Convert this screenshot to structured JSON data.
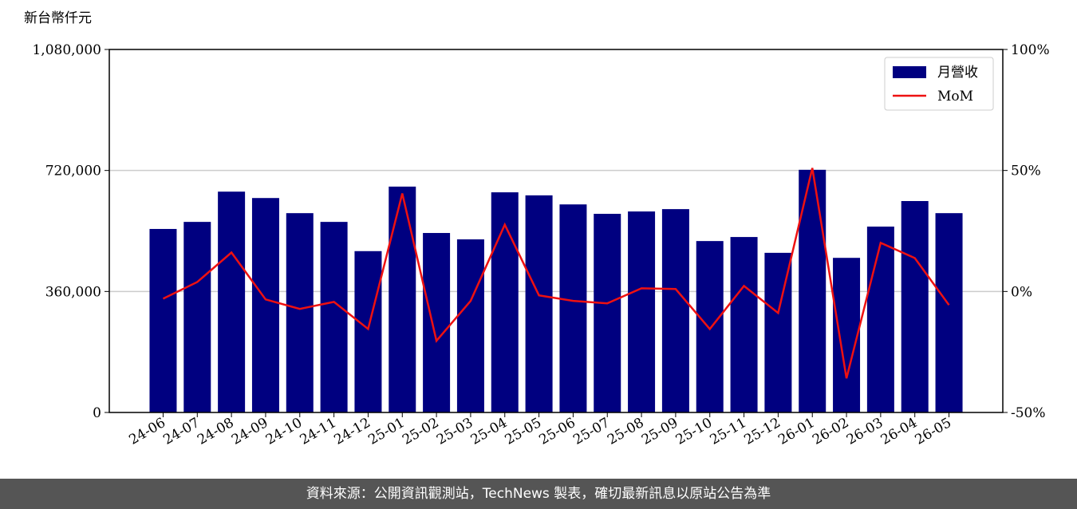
{
  "chart_data": {
    "type": "bar-line",
    "y_label": "新台幣仟元",
    "categories": [
      "24-06",
      "24-07",
      "24-08",
      "24-09",
      "24-10",
      "24-11",
      "24-12",
      "25-01",
      "25-02",
      "25-03",
      "25-04",
      "25-05",
      "25-06",
      "25-07",
      "25-08",
      "25-09",
      "25-10",
      "25-11",
      "25-12",
      "26-01",
      "26-02",
      "26-03",
      "26-04",
      "26-05"
    ],
    "series": [
      {
        "name": "月營收",
        "type": "bar",
        "color": "#000080",
        "axis": "y",
        "values": [
          546000,
          567000,
          657000,
          638000,
          593000,
          567000,
          480000,
          672000,
          534000,
          515000,
          655000,
          646000,
          619000,
          591000,
          598000,
          605000,
          510000,
          522000,
          475000,
          722000,
          460000,
          553000,
          629000,
          593000
        ]
      },
      {
        "name": "MoM",
        "type": "line",
        "color": "#ee1111",
        "axis": "y2",
        "values": [
          -3.0,
          3.9,
          16.1,
          -3.3,
          -7.2,
          -4.3,
          -15.5,
          40.5,
          -20.4,
          -3.9,
          27.6,
          -1.6,
          -3.9,
          -4.9,
          1.3,
          1.0,
          -15.5,
          2.3,
          -8.9,
          51.0,
          -35.9,
          20.1,
          13.8,
          -5.6
        ]
      }
    ],
    "ylim": [
      0,
      1080000
    ],
    "yticks": [
      0,
      {
        "value": 360000,
        "label": "360,000"
      },
      {
        "value": 720000,
        "label": "720,000"
      },
      {
        "value": 1080000,
        "label": "1,080,000"
      }
    ],
    "y2lim": [
      -50,
      100
    ],
    "y2ticks": [
      {
        "value": -50,
        "label": "-50%"
      },
      {
        "value": 0,
        "label": "0%"
      },
      {
        "value": 50,
        "label": "50%"
      },
      {
        "value": 100,
        "label": "100%"
      }
    ],
    "grid": true,
    "legend": "upper right",
    "footer": "資料來源：公開資訊觀測站，TechNews 製表，確切最新訊息以原站公告為準"
  }
}
